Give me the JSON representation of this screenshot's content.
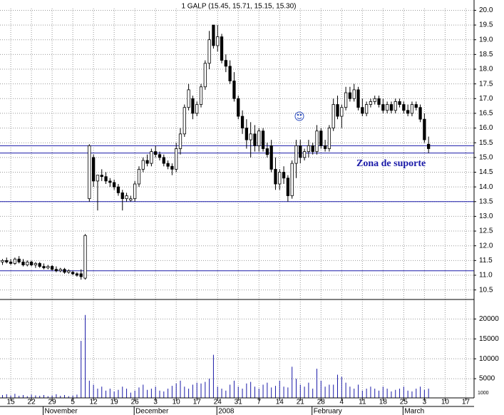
{
  "chart_data": {
    "type": "candlestick",
    "title": "1 GALP (15.45, 15.71, 15.15, 15.30)",
    "annotation": "Zona de suporte",
    "volume_unit_label": "1000",
    "grid": true,
    "up_color": "#ffffff",
    "down_color": "#000000",
    "line_color": "#1a1aa8",
    "xlim": [
      -2.6,
      112
    ],
    "ylim": [
      10.2,
      20.35
    ],
    "yticks": [
      10.5,
      {
        "value": 11.0,
        "label": "11.0"
      },
      11.5,
      {
        "value": 12.0,
        "label": "12.0"
      },
      12.5,
      {
        "value": 13.0,
        "label": "13.0"
      },
      13.5,
      {
        "value": 14.0,
        "label": "14.0"
      },
      14.5,
      {
        "value": 15.0,
        "label": "15.0"
      },
      15.5,
      {
        "value": 16.0,
        "label": "16.0"
      },
      16.5,
      {
        "value": 17.0,
        "label": "17.0"
      },
      17.5,
      {
        "value": 18.0,
        "label": "18.0"
      },
      18.5,
      {
        "value": 19.0,
        "label": "19.0"
      },
      19.5,
      {
        "value": 20.0,
        "label": "20.0"
      }
    ],
    "y2lim": [
      0,
      24000
    ],
    "y2ticks": [
      5000,
      10000,
      15000,
      20000
    ],
    "xticks": [
      {
        "value": 0,
        "label": "15"
      },
      {
        "value": 5,
        "label": "22"
      },
      {
        "value": 10,
        "label": "29"
      },
      {
        "value": 15,
        "label": "5"
      },
      {
        "value": 20,
        "label": "12"
      },
      {
        "value": 25,
        "label": "19"
      },
      {
        "value": 30,
        "label": "26"
      },
      {
        "value": 35,
        "label": "3"
      },
      {
        "value": 40,
        "label": "10"
      },
      {
        "value": 45,
        "label": "17"
      },
      {
        "value": 50,
        "label": "24"
      },
      {
        "value": 55,
        "label": "31"
      },
      {
        "value": 60,
        "label": "7"
      },
      {
        "value": 65,
        "label": "14"
      },
      {
        "value": 70,
        "label": "21"
      },
      {
        "value": 75,
        "label": "28"
      },
      {
        "value": 80,
        "label": "4"
      },
      {
        "value": 85,
        "label": "11"
      },
      {
        "value": 90,
        "label": "18"
      },
      {
        "value": 95,
        "label": "25"
      },
      {
        "value": 100,
        "label": "3"
      },
      {
        "value": 105,
        "label": "10"
      },
      {
        "value": 110,
        "label": "17"
      }
    ],
    "month_labels": [
      {
        "value": 13,
        "label": "November"
      },
      {
        "value": 35,
        "label": "December"
      },
      {
        "value": 55,
        "label": "2008"
      },
      {
        "value": 78,
        "label": "February"
      },
      {
        "value": 100,
        "label": "March"
      }
    ],
    "support_levels": [
      15.4,
      15.15,
      13.5,
      11.15
    ],
    "x": [
      -2,
      -1,
      0,
      1,
      2,
      3,
      4,
      5,
      6,
      7,
      8,
      9,
      10,
      11,
      12,
      13,
      14,
      15,
      16,
      17,
      18,
      19,
      20,
      21,
      22,
      23,
      24,
      25,
      26,
      27,
      28,
      29,
      30,
      31,
      32,
      33,
      34,
      35,
      36,
      37,
      38,
      39,
      40,
      41,
      42,
      43,
      44,
      45,
      46,
      47,
      48,
      49,
      50,
      51,
      52,
      53,
      54,
      55,
      56,
      57,
      58,
      59,
      60,
      61,
      62,
      63,
      64,
      65,
      66,
      67,
      68,
      69,
      70,
      71,
      72,
      73,
      74,
      75,
      76,
      77,
      78,
      79,
      80,
      81,
      82,
      83,
      84,
      85,
      86,
      87,
      88,
      89,
      90,
      91,
      92,
      93,
      94,
      95,
      96,
      97,
      98,
      99,
      100,
      101
    ],
    "ohlc": [
      [
        11.45,
        11.55,
        11.35,
        11.5
      ],
      [
        11.5,
        11.6,
        11.4,
        11.45
      ],
      [
        11.45,
        11.55,
        11.35,
        11.4
      ],
      [
        11.4,
        11.6,
        11.35,
        11.55
      ],
      [
        11.55,
        11.65,
        11.4,
        11.45
      ],
      [
        11.45,
        11.55,
        11.3,
        11.35
      ],
      [
        11.35,
        11.5,
        11.3,
        11.45
      ],
      [
        11.45,
        11.5,
        11.3,
        11.35
      ],
      [
        11.35,
        11.45,
        11.25,
        11.4
      ],
      [
        11.4,
        11.45,
        11.25,
        11.3
      ],
      [
        11.3,
        11.4,
        11.2,
        11.25
      ],
      [
        11.25,
        11.35,
        11.2,
        11.3
      ],
      [
        11.3,
        11.35,
        11.15,
        11.2
      ],
      [
        11.2,
        11.3,
        11.1,
        11.15
      ],
      [
        11.15,
        11.25,
        11.1,
        11.2
      ],
      [
        11.2,
        11.25,
        11.05,
        11.1
      ],
      [
        11.1,
        11.2,
        11.05,
        11.15
      ],
      [
        11.1,
        11.15,
        11.0,
        11.05
      ],
      [
        11.05,
        11.1,
        10.95,
        11.0
      ],
      [
        11.05,
        11.2,
        10.85,
        10.95
      ],
      [
        10.9,
        12.4,
        10.85,
        12.35
      ],
      [
        13.6,
        15.45,
        13.5,
        15.4
      ],
      [
        15.0,
        15.1,
        14.0,
        14.2
      ],
      [
        14.2,
        14.4,
        13.2,
        14.4
      ],
      [
        14.4,
        14.6,
        14.2,
        14.35
      ],
      [
        14.35,
        14.5,
        14.1,
        14.2
      ],
      [
        14.2,
        14.3,
        14.0,
        14.15
      ],
      [
        14.15,
        14.25,
        13.9,
        14.0
      ],
      [
        14.0,
        14.1,
        13.7,
        13.8
      ],
      [
        13.8,
        13.9,
        13.2,
        13.6
      ],
      [
        13.6,
        13.8,
        13.5,
        13.7
      ],
      [
        13.55,
        13.7,
        13.5,
        13.6
      ],
      [
        13.6,
        14.2,
        13.5,
        14.1
      ],
      [
        14.1,
        14.7,
        14.0,
        14.6
      ],
      [
        14.6,
        15.0,
        14.5,
        14.9
      ],
      [
        14.9,
        15.1,
        14.7,
        14.8
      ],
      [
        14.8,
        15.3,
        14.7,
        15.2
      ],
      [
        15.2,
        15.4,
        15.0,
        15.1
      ],
      [
        15.1,
        15.2,
        14.9,
        15.0
      ],
      [
        15.0,
        15.1,
        14.7,
        14.8
      ],
      [
        14.8,
        14.9,
        14.6,
        14.7
      ],
      [
        14.7,
        14.8,
        14.4,
        14.6
      ],
      [
        14.6,
        15.5,
        14.5,
        15.3
      ],
      [
        15.3,
        16.0,
        15.1,
        15.8
      ],
      [
        15.8,
        16.8,
        15.7,
        16.7
      ],
      [
        16.7,
        17.5,
        16.6,
        17.3
      ],
      [
        17.0,
        17.1,
        16.3,
        16.5
      ],
      [
        16.5,
        16.9,
        16.4,
        16.8
      ],
      [
        16.8,
        17.5,
        16.7,
        17.4
      ],
      [
        17.4,
        18.3,
        17.3,
        18.2
      ],
      [
        18.2,
        19.3,
        18.0,
        19.0
      ],
      [
        19.5,
        19.5,
        18.7,
        18.8
      ],
      [
        18.8,
        19.5,
        18.6,
        19.1
      ],
      [
        19.1,
        19.2,
        18.2,
        18.3
      ],
      [
        18.3,
        18.5,
        17.9,
        18.1
      ],
      [
        18.1,
        18.3,
        17.5,
        17.6
      ],
      [
        17.6,
        17.9,
        16.9,
        17.0
      ],
      [
        17.0,
        17.1,
        16.3,
        16.4
      ],
      [
        16.4,
        16.6,
        15.8,
        16.0
      ],
      [
        16.0,
        16.3,
        15.3,
        15.6
      ],
      [
        15.6,
        16.2,
        15.0,
        15.8
      ],
      [
        15.8,
        16.1,
        15.2,
        15.4
      ],
      [
        15.4,
        16.0,
        15.2,
        15.9
      ],
      [
        15.9,
        16.0,
        15.2,
        15.3
      ],
      [
        15.3,
        15.5,
        15.0,
        15.1
      ],
      [
        15.4,
        15.6,
        14.5,
        14.6
      ],
      [
        14.6,
        15.0,
        13.9,
        14.1
      ],
      [
        14.1,
        14.6,
        13.9,
        14.5
      ],
      [
        14.5,
        14.7,
        14.1,
        14.3
      ],
      [
        14.3,
        14.4,
        13.5,
        13.7
      ],
      [
        13.7,
        14.9,
        13.6,
        14.8
      ],
      [
        14.8,
        15.6,
        14.3,
        15.4
      ],
      [
        15.4,
        15.6,
        14.8,
        15.0
      ],
      [
        15.0,
        15.3,
        14.9,
        15.2
      ],
      [
        15.2,
        15.6,
        15.0,
        15.4
      ],
      [
        15.4,
        15.5,
        15.1,
        15.2
      ],
      [
        15.2,
        16.1,
        15.1,
        15.9
      ],
      [
        15.9,
        16.0,
        15.3,
        15.4
      ],
      [
        15.4,
        15.6,
        15.2,
        15.3
      ],
      [
        15.3,
        16.1,
        15.2,
        16.0
      ],
      [
        16.0,
        17.0,
        15.9,
        16.8
      ],
      [
        16.8,
        17.1,
        16.3,
        16.4
      ],
      [
        16.4,
        16.8,
        16.0,
        16.7
      ],
      [
        16.7,
        17.4,
        16.6,
        17.2
      ],
      [
        17.2,
        17.4,
        16.9,
        17.0
      ],
      [
        17.0,
        17.5,
        16.9,
        17.3
      ],
      [
        17.3,
        17.4,
        16.6,
        16.7
      ],
      [
        16.7,
        17.0,
        16.4,
        16.5
      ],
      [
        16.5,
        16.9,
        16.4,
        16.8
      ],
      [
        16.8,
        17.0,
        16.7,
        16.9
      ],
      [
        16.9,
        17.1,
        16.8,
        17.0
      ],
      [
        17.0,
        17.1,
        16.7,
        16.8
      ],
      [
        16.8,
        17.0,
        16.5,
        16.6
      ],
      [
        16.6,
        16.9,
        16.5,
        16.8
      ],
      [
        16.8,
        16.9,
        16.5,
        16.6
      ],
      [
        16.6,
        17.0,
        16.5,
        16.9
      ],
      [
        16.9,
        17.0,
        16.7,
        16.8
      ],
      [
        16.8,
        16.9,
        16.5,
        16.6
      ],
      [
        16.6,
        16.8,
        16.4,
        16.5
      ],
      [
        16.5,
        16.9,
        16.4,
        16.8
      ],
      [
        16.8,
        16.9,
        16.6,
        16.7
      ],
      [
        16.7,
        16.8,
        16.2,
        16.3
      ],
      [
        16.3,
        16.5,
        15.5,
        15.6
      ],
      [
        15.45,
        15.71,
        15.15,
        15.3
      ]
    ],
    "volume": [
      900,
      1100,
      800,
      1200,
      700,
      900,
      600,
      1000,
      800,
      700,
      900,
      600,
      800,
      1100,
      700,
      900,
      600,
      800,
      1000,
      14500,
      21000,
      4500,
      3500,
      2500,
      3000,
      2000,
      2500,
      1800,
      2200,
      3000,
      2500,
      1500,
      2000,
      2800,
      3500,
      2200,
      2500,
      3000,
      2000,
      1800,
      2500,
      3200,
      3800,
      4500,
      3000,
      2500,
      3500,
      4000,
      3800,
      4200,
      5000,
      11000,
      3000,
      2500,
      2000,
      3500,
      4500,
      3000,
      2500,
      3800,
      4200,
      3000,
      2500,
      3500,
      4000,
      2800,
      3200,
      4500,
      3000,
      2800,
      8000,
      5000,
      3500,
      3000,
      4000,
      2500,
      7500,
      4500,
      3000,
      3500,
      3500,
      6000,
      5500,
      4000,
      3000,
      2500,
      3500,
      2000,
      2500,
      3000,
      2500,
      2000,
      3000,
      2500,
      1800,
      2200,
      2500,
      3000,
      2000,
      1800,
      2500,
      3000,
      2200,
      2500
    ]
  }
}
